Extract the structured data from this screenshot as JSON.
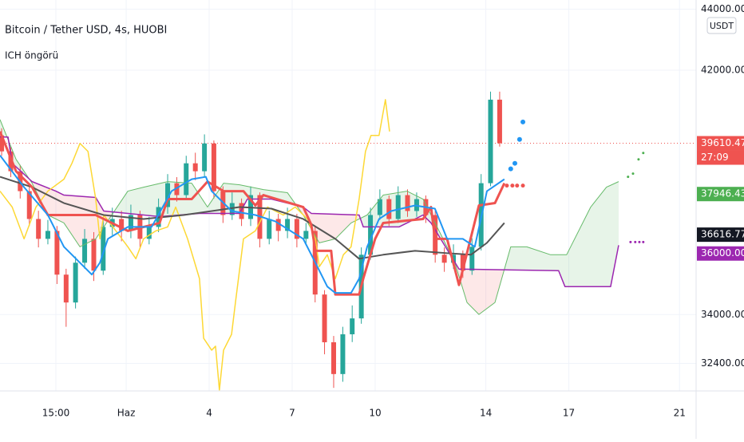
{
  "chart_data": {
    "type": "candlestick",
    "title": "Bitcoin / Tether USD, 4s, HUOBI",
    "subtitle": "ICH öngörü",
    "currency": "USDT",
    "countdown": "27:09",
    "xlim": [
      -4.56,
      20.6
    ],
    "ylim": [
      31500,
      44300
    ],
    "xticks": [
      {
        "value": -2.54,
        "label": "15:00"
      },
      {
        "value": 0,
        "label": "Haz"
      },
      {
        "value": 3,
        "label": "4"
      },
      {
        "value": 6,
        "label": "7"
      },
      {
        "value": 9,
        "label": "10"
      },
      {
        "value": 13,
        "label": "14"
      },
      {
        "value": 16,
        "label": "17"
      },
      {
        "value": 20,
        "label": "21"
      }
    ],
    "yticks": [
      {
        "value": 32400,
        "label": "32400.00"
      },
      {
        "value": 34000,
        "label": "34000.00"
      },
      {
        "value": 42000,
        "label": "42000.00"
      },
      {
        "value": 44000,
        "label": "44000.00"
      }
    ],
    "grid": true,
    "up_color": "#26a69a",
    "down_color": "#ef5350",
    "cloud_colors": {
      "up": "#4caf5022",
      "down": "#ef535022"
    },
    "candles": {
      "x": [
        -4.5,
        -4.17,
        -3.83,
        -3.5,
        -3.17,
        -2.83,
        -2.5,
        -2.17,
        -1.83,
        -1.5,
        -1.17,
        -0.83,
        -0.5,
        -0.17,
        0.17,
        0.5,
        0.83,
        1.17,
        1.5,
        1.83,
        2.17,
        2.5,
        2.83,
        3.17,
        3.5,
        3.83,
        4.17,
        4.5,
        4.83,
        5.17,
        5.5,
        5.83,
        6.17,
        6.5,
        6.83,
        7.17,
        7.5,
        7.83,
        8.17,
        8.5,
        8.83,
        9.17,
        9.5,
        9.83,
        10.17,
        10.5,
        10.83,
        11.17,
        11.5,
        11.83,
        12.17,
        12.5,
        12.83,
        13.17,
        13.5
      ],
      "open": [
        39865,
        39344,
        38693,
        38042,
        37130,
        36480,
        36740,
        35308,
        34396,
        35698,
        36480,
        35438,
        36870,
        37130,
        36740,
        37260,
        36480,
        36870,
        37521,
        38302,
        37912,
        38953,
        38693,
        39604,
        38042,
        37260,
        37651,
        37130,
        37912,
        36480,
        37130,
        36740,
        37130,
        36480,
        36740,
        34657,
        33094,
        32053,
        33355,
        33875,
        35959,
        37260,
        37781,
        37130,
        37912,
        37391,
        37781,
        37260,
        35959,
        35698,
        35959,
        35438,
        36219,
        38302,
        41037
      ],
      "high": [
        40100,
        39500,
        38900,
        38200,
        37400,
        37100,
        36900,
        35500,
        35900,
        36800,
        36700,
        37100,
        37500,
        37400,
        37600,
        37400,
        37200,
        37800,
        38600,
        38500,
        39200,
        39300,
        39900,
        39700,
        38200,
        38000,
        37800,
        38200,
        38000,
        37400,
        37300,
        37500,
        37300,
        37000,
        36900,
        34800,
        33300,
        33600,
        34300,
        36200,
        37500,
        38100,
        37900,
        38200,
        38100,
        38000,
        37900,
        37400,
        36200,
        36300,
        36100,
        36500,
        38600,
        41300,
        41300
      ],
      "low": [
        39200,
        38500,
        37800,
        36900,
        36200,
        36300,
        35000,
        33600,
        34200,
        35500,
        35100,
        35300,
        36600,
        36400,
        36500,
        36200,
        36300,
        36700,
        37300,
        37700,
        37800,
        38400,
        38500,
        37800,
        37000,
        37100,
        36900,
        36900,
        36200,
        36300,
        36400,
        36500,
        36200,
        36300,
        34400,
        32700,
        31600,
        31800,
        33100,
        33700,
        35800,
        37100,
        36900,
        37000,
        37200,
        37200,
        37000,
        35700,
        35400,
        35500,
        35200,
        35300,
        36100,
        38200,
        39500
      ],
      "close": [
        39344,
        38693,
        38042,
        37130,
        36480,
        36740,
        35308,
        34396,
        35698,
        36480,
        35438,
        36870,
        37130,
        36740,
        37260,
        36480,
        36870,
        37521,
        38302,
        37912,
        38953,
        38693,
        39604,
        38042,
        37260,
        37651,
        37130,
        37912,
        36480,
        37130,
        36740,
        37130,
        36480,
        36740,
        34657,
        33094,
        32053,
        33355,
        33875,
        35959,
        37260,
        37781,
        37130,
        37912,
        37391,
        37781,
        37260,
        35959,
        35698,
        35959,
        35438,
        36219,
        38302,
        41037,
        39610.47
      ]
    },
    "series": [
      {
        "role": "a",
        "color": "#66bb6a",
        "width": 1,
        "style": "line",
        "x": [
          -4.56,
          -3.98,
          -3.4,
          -2.83,
          -2.25,
          -1.67,
          -1.1,
          -0.52,
          0.06,
          0.63,
          1.5,
          2.37,
          2.94,
          3.52,
          4.1,
          4.96,
          5.83,
          6.4,
          6.98,
          7.56,
          8.13,
          8.71,
          9.29,
          10.15,
          10.73,
          11.31,
          11.88,
          12.32,
          12.75,
          13.33,
          13.9,
          14.48,
          15.34,
          15.92,
          16.79,
          17.36,
          17.8
        ],
        "values": [
          40385,
          39083,
          38302,
          37260,
          37000,
          36219,
          36480,
          37260,
          38042,
          38172,
          38354,
          38302,
          37521,
          38302,
          38250,
          38094,
          37990,
          37260,
          36349,
          36480,
          37000,
          37260,
          37912,
          38042,
          37781,
          36740,
          35698,
          34396,
          34005,
          34396,
          36219,
          36219,
          35959,
          35959,
          37521,
          38172,
          38354
        ]
      },
      {
        "role": "b",
        "color": "#9c27b0",
        "width": 1.5,
        "style": "line",
        "x": [
          -4.56,
          -4.27,
          -4.12,
          -3.4,
          -2.54,
          -2.25,
          -1.1,
          -0.81,
          0.06,
          1.21,
          2.65,
          4.1,
          4.38,
          5.25,
          6.4,
          6.69,
          8.42,
          8.57,
          9.86,
          10.73,
          11.02,
          12.03,
          15.63,
          15.86,
          17.51,
          17.8
        ],
        "values": [
          39813,
          39813,
          38953,
          38354,
          38042,
          37912,
          37834,
          37391,
          37313,
          37208,
          37313,
          37313,
          37781,
          37781,
          37521,
          37313,
          37260,
          36870,
          36870,
          37260,
          37000,
          35490,
          35438,
          34917,
          34917,
          36271
        ]
      },
      {
        "color": "#fdd835",
        "width": 1.5,
        "style": "line",
        "x": [
          -4.56,
          -4.12,
          -3.69,
          -3.26,
          -2.83,
          -2.25,
          -1.96,
          -1.67,
          -1.38,
          -1.1,
          -0.95,
          -0.81,
          -0.37,
          0.06,
          0.35,
          0.63,
          1.07,
          1.5,
          1.79,
          2.22,
          2.65,
          2.8,
          3.09,
          3.23,
          3.37,
          3.52,
          3.81,
          3.95,
          4.24,
          4.67,
          5.11,
          5.39,
          5.68,
          6.11,
          6.55,
          6.84,
          6.98,
          7.27,
          7.56,
          7.85,
          8.13,
          8.42,
          8.65,
          8.85,
          9.14,
          9.37,
          9.52
        ],
        "values": [
          38042,
          37521,
          36480,
          37521,
          38042,
          38432,
          38953,
          39604,
          39344,
          37781,
          36480,
          37260,
          36740,
          36219,
          35828,
          36480,
          36740,
          36870,
          37521,
          36480,
          35177,
          33225,
          32834,
          32965,
          31532,
          32834,
          33355,
          34396,
          36480,
          36740,
          37521,
          37391,
          37260,
          37521,
          37130,
          36480,
          35568,
          35959,
          35177,
          35959,
          36219,
          37781,
          39344,
          39865,
          39865,
          41037,
          39995
        ]
      },
      {
        "color": "#555555",
        "width": 2,
        "style": "line",
        "x": [
          -4.56,
          -3.4,
          -2.25,
          -0.81,
          0.63,
          2.08,
          4.1,
          5.25,
          6.4,
          7.56,
          8.42,
          9.29,
          10.44,
          11.6,
          12.46,
          13.04,
          13.67
        ],
        "values": [
          38511,
          38172,
          37651,
          37260,
          37130,
          37260,
          37521,
          37469,
          37130,
          36480,
          35828,
          35959,
          36089,
          36011,
          35959,
          36349,
          37000
        ]
      },
      {
        "color": "#ef5350",
        "width": 3,
        "style": "line",
        "x": [
          -4.56,
          -3.98,
          -3.4,
          -2.83,
          -1.1,
          0.06,
          1.21,
          1.5,
          2.37,
          2.94,
          3.52,
          4.24,
          4.67,
          4.96,
          6.4,
          6.69,
          6.84,
          7.41,
          7.56,
          8.42,
          8.57,
          9.0,
          9.29,
          10.73,
          11.02,
          11.16,
          11.6,
          12.03,
          12.75,
          13.33,
          13.67
        ],
        "values": [
          39995,
          38693,
          38172,
          37260,
          37260,
          36740,
          37000,
          37781,
          37781,
          38354,
          38042,
          38042,
          37573,
          37912,
          37521,
          36948,
          36089,
          36089,
          34657,
          34657,
          35177,
          36480,
          37000,
          37130,
          37521,
          36480,
          36480,
          34969,
          37573,
          37651,
          38302
        ]
      },
      {
        "color": "#2196f3",
        "width": 2,
        "style": "line",
        "x": [
          -4.56,
          -3.69,
          -2.83,
          -2.25,
          -1.67,
          -1.24,
          -0.95,
          -0.66,
          0.06,
          0.92,
          1.64,
          2.37,
          2.88,
          3.09,
          3.81,
          4.67,
          5.39,
          6.4,
          6.84,
          7.27,
          7.56,
          8.13,
          8.42,
          8.71,
          9.14,
          9.58,
          10.44,
          11.16,
          11.6,
          12.17,
          12.6,
          13.04,
          13.67
        ],
        "values": [
          39214,
          38172,
          37260,
          36219,
          35698,
          35308,
          35698,
          36480,
          36870,
          36870,
          38042,
          38432,
          38511,
          38042,
          37391,
          37260,
          37052,
          36480,
          35698,
          34917,
          34709,
          34709,
          35177,
          36219,
          37130,
          37391,
          37573,
          37469,
          36480,
          36480,
          36219,
          38042,
          38432
        ]
      },
      {
        "color": "#2196f3",
        "size": 3,
        "style": "dots",
        "x": [
          13.9,
          14.05,
          14.22,
          14.34
        ],
        "values": [
          38771,
          38953,
          39734,
          40307
        ]
      },
      {
        "color": "#ef5350",
        "size": 2.5,
        "style": "dots",
        "x": [
          13.76,
          13.96,
          14.13,
          14.34
        ],
        "values": [
          38224,
          38224,
          38224,
          38224
        ]
      },
      {
        "color": "#4caf50",
        "size": 1.5,
        "style": "dots",
        "x": [
          18.14,
          18.32,
          18.52,
          18.69
        ],
        "values": [
          38511,
          38615,
          39083,
          39292
        ]
      },
      {
        "color": "#9c27b0",
        "size": 1.5,
        "style": "dots",
        "x": [
          18.23,
          18.4,
          18.55,
          18.69
        ],
        "values": [
          36375,
          36375,
          36375,
          36375
        ]
      }
    ],
    "price_labels": [
      {
        "value": 39610.47,
        "label": "39610.47",
        "color": "#ef5350",
        "line": true
      },
      {
        "value": 37946.43,
        "label": "37946.43",
        "color": "#4caf50"
      },
      {
        "value": 36616.77,
        "label": "36616.77",
        "color": "#131722"
      },
      {
        "value": 36000,
        "label": "36000.00",
        "color": "#9c27b0"
      }
    ]
  }
}
